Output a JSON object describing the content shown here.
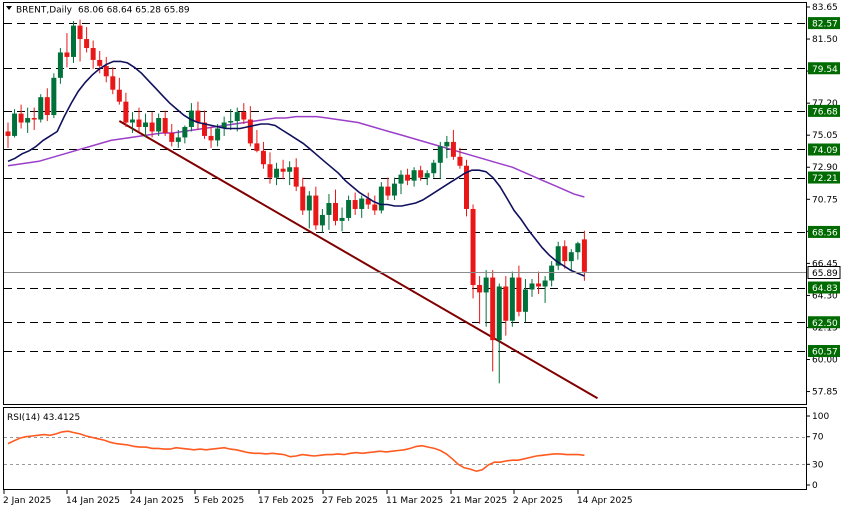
{
  "header": {
    "symbol_label": "BRENT,Daily",
    "ohlc_label": "68.06 68.64 65.28 65.89",
    "menu_icon": "triangle-down-icon"
  },
  "indicator": {
    "label": "RSI(14) 43.4125"
  },
  "colors": {
    "bull": "#00713b",
    "bear": "#e81818",
    "ma_fast": "#10105e",
    "ma_slow": "#9b3fc9",
    "trendline": "#800000",
    "level_tag": "#006b00",
    "rsi_line": "#ff5a1f",
    "grid_dash": "#000000"
  },
  "chart_data": [
    {
      "type": "candlestick",
      "title": "BRENT,Daily",
      "ylim": [
        57.15,
        83.65
      ],
      "y_ticks": [
        "83.65",
        "81.50",
        "79.35",
        "77.20",
        "75.05",
        "72.90",
        "70.75",
        "68.60",
        "66.45",
        "64.30",
        "62.15",
        "60.00",
        "57.85"
      ],
      "x_ticks": [
        "2 Jan 2025",
        "14 Jan 2025",
        "24 Jan 2025",
        "5 Feb 2025",
        "17 Feb 2025",
        "27 Feb 2025",
        "11 Mar 2025",
        "21 Mar 2025",
        "2 Apr 2025",
        "14 Apr 2025"
      ],
      "levels": [
        {
          "value": 82.57,
          "label": "82.57"
        },
        {
          "value": 79.54,
          "label": "79.54"
        },
        {
          "value": 76.68,
          "label": "76.68"
        },
        {
          "value": 74.09,
          "label": "74.09"
        },
        {
          "value": 72.21,
          "label": "72.21"
        },
        {
          "value": 68.56,
          "label": "68.56"
        },
        {
          "value": 64.83,
          "label": "64.83"
        },
        {
          "value": 62.5,
          "label": "62.50"
        },
        {
          "value": 60.57,
          "label": "60.57"
        }
      ],
      "current_price": {
        "value": 65.89,
        "label": "65.89"
      },
      "candles": [
        [
          75.3,
          75.9,
          74.2,
          75.0
        ],
        [
          75.0,
          76.8,
          74.9,
          76.5
        ],
        [
          76.5,
          77.1,
          75.5,
          75.9
        ],
        [
          75.9,
          76.9,
          75.2,
          76.2
        ],
        [
          76.2,
          76.9,
          75.4,
          76.1
        ],
        [
          76.1,
          77.8,
          75.9,
          77.6
        ],
        [
          77.6,
          78.2,
          76.0,
          76.4
        ],
        [
          76.4,
          79.2,
          76.2,
          78.9
        ],
        [
          78.9,
          80.9,
          78.5,
          80.6
        ],
        [
          80.6,
          81.9,
          79.6,
          80.3
        ],
        [
          80.3,
          82.7,
          79.9,
          82.4
        ],
        [
          82.4,
          82.8,
          80.0,
          81.5
        ],
        [
          81.5,
          82.3,
          80.6,
          80.9
        ],
        [
          80.9,
          81.4,
          79.5,
          80.1
        ],
        [
          80.1,
          80.7,
          79.2,
          79.7
        ],
        [
          79.7,
          80.3,
          78.6,
          79.0
        ],
        [
          79.0,
          79.6,
          77.8,
          78.1
        ],
        [
          78.1,
          78.9,
          77.1,
          77.3
        ],
        [
          77.3,
          77.9,
          75.6,
          75.9
        ],
        [
          75.9,
          76.6,
          75.2,
          76.1
        ],
        [
          76.1,
          76.9,
          75.3,
          75.6
        ],
        [
          75.6,
          76.5,
          74.9,
          75.9
        ],
        [
          75.9,
          76.6,
          74.9,
          75.3
        ],
        [
          75.3,
          76.5,
          75.0,
          76.2
        ],
        [
          76.2,
          76.7,
          75.0,
          75.2
        ],
        [
          75.2,
          75.8,
          74.3,
          74.6
        ],
        [
          74.6,
          75.4,
          74.2,
          74.9
        ],
        [
          74.9,
          75.7,
          74.5,
          75.6
        ],
        [
          75.6,
          77.2,
          75.3,
          76.7
        ],
        [
          76.7,
          77.3,
          75.4,
          75.9
        ],
        [
          75.9,
          76.7,
          74.8,
          75.0
        ],
        [
          75.0,
          75.6,
          74.2,
          74.7
        ],
        [
          74.7,
          75.8,
          74.3,
          75.5
        ],
        [
          75.5,
          76.3,
          75.0,
          75.9
        ],
        [
          75.9,
          76.8,
          75.4,
          76.0
        ],
        [
          76.0,
          76.9,
          75.3,
          76.6
        ],
        [
          76.6,
          77.2,
          75.8,
          76.1
        ],
        [
          76.1,
          77.0,
          74.3,
          74.5
        ],
        [
          74.5,
          75.4,
          73.9,
          74.0
        ],
        [
          74.0,
          74.6,
          72.8,
          73.1
        ],
        [
          73.1,
          73.9,
          71.8,
          72.2
        ],
        [
          72.2,
          73.2,
          71.7,
          72.8
        ],
        [
          72.8,
          73.4,
          72.1,
          72.6
        ],
        [
          72.6,
          73.3,
          71.7,
          72.9
        ],
        [
          72.9,
          73.5,
          71.3,
          71.6
        ],
        [
          71.6,
          72.2,
          69.7,
          70.0
        ],
        [
          70.0,
          71.3,
          68.8,
          71.0
        ],
        [
          71.0,
          71.6,
          68.7,
          69.0
        ],
        [
          69.0,
          70.1,
          68.5,
          69.7
        ],
        [
          69.7,
          71.1,
          68.7,
          70.5
        ],
        [
          70.5,
          71.4,
          69.0,
          69.3
        ],
        [
          69.3,
          70.2,
          68.6,
          69.5
        ],
        [
          69.5,
          71.0,
          69.3,
          70.7
        ],
        [
          70.7,
          71.2,
          69.7,
          70.1
        ],
        [
          70.1,
          71.0,
          69.5,
          70.8
        ],
        [
          70.8,
          71.2,
          70.1,
          70.4
        ],
        [
          70.4,
          71.0,
          69.7,
          70.0
        ],
        [
          70.0,
          71.9,
          69.8,
          71.6
        ],
        [
          71.6,
          72.2,
          70.7,
          71.0
        ],
        [
          71.0,
          72.2,
          70.7,
          71.8
        ],
        [
          71.8,
          72.7,
          71.1,
          72.4
        ],
        [
          72.4,
          72.8,
          71.7,
          72.0
        ],
        [
          72.0,
          72.9,
          71.6,
          72.7
        ],
        [
          72.7,
          73.0,
          72.0,
          72.2
        ],
        [
          72.2,
          72.7,
          71.7,
          72.5
        ],
        [
          72.5,
          73.4,
          72.2,
          73.2
        ],
        [
          73.2,
          74.6,
          72.1,
          74.3
        ],
        [
          74.3,
          75.0,
          73.5,
          74.6
        ],
        [
          74.6,
          75.4,
          73.4,
          73.6
        ],
        [
          73.6,
          74.2,
          72.8,
          73.0
        ],
        [
          73.0,
          73.4,
          69.6,
          70.1
        ],
        [
          70.1,
          70.4,
          64.1,
          65.0
        ],
        [
          65.0,
          65.6,
          62.4,
          64.5
        ],
        [
          64.5,
          66.0,
          62.2,
          65.5
        ],
        [
          65.5,
          66.0,
          59.2,
          61.3
        ],
        [
          61.3,
          65.1,
          58.4,
          64.9
        ],
        [
          64.9,
          65.6,
          61.6,
          62.6
        ],
        [
          62.6,
          65.9,
          62.2,
          65.5
        ],
        [
          65.5,
          66.3,
          62.9,
          63.2
        ],
        [
          63.2,
          65.4,
          62.5,
          64.7
        ],
        [
          64.7,
          65.4,
          64.2,
          65.1
        ],
        [
          65.1,
          65.9,
          64.4,
          64.9
        ],
        [
          64.9,
          65.6,
          63.8,
          65.3
        ],
        [
          65.3,
          66.6,
          64.9,
          66.3
        ],
        [
          66.3,
          67.9,
          66.0,
          67.6
        ],
        [
          67.6,
          68.0,
          66.1,
          66.6
        ],
        [
          66.6,
          67.4,
          65.9,
          67.2
        ],
        [
          67.2,
          67.9,
          66.7,
          67.8
        ],
        [
          68.06,
          68.64,
          65.28,
          65.89
        ]
      ],
      "ma_fast": [
        73.3,
        73.5,
        73.8,
        74.0,
        74.3,
        74.7,
        75.0,
        75.3,
        76.3,
        77.2,
        78.0,
        78.6,
        79.1,
        79.5,
        79.8,
        80.0,
        80.0,
        79.9,
        79.6,
        79.2,
        78.7,
        78.2,
        77.7,
        77.2,
        76.8,
        76.4,
        76.1,
        75.9,
        75.8,
        75.7,
        75.6,
        75.5,
        75.5,
        75.5,
        75.6,
        75.7,
        75.8,
        75.8,
        75.7,
        75.4,
        75.1,
        74.8,
        74.5,
        74.1,
        73.7,
        73.3,
        72.9,
        72.5,
        72.0,
        71.6,
        71.2,
        70.9,
        70.6,
        70.4,
        70.4,
        70.3,
        70.3,
        70.4,
        70.5,
        70.7,
        71.0,
        71.3,
        71.6,
        71.9,
        72.2,
        72.5,
        72.7,
        72.7,
        72.6,
        72.2,
        71.6,
        70.8,
        70.0,
        69.4,
        68.7,
        68.1,
        67.5,
        67.0,
        66.6,
        66.3,
        66.0,
        65.8,
        65.6
      ],
      "ma_slow": [
        73.0,
        73.1,
        73.2,
        73.3,
        73.5,
        73.7,
        73.9,
        74.1,
        74.3,
        74.5,
        74.7,
        74.8,
        74.9,
        75.0,
        75.1,
        75.2,
        75.2,
        75.3,
        75.4,
        75.5,
        75.6,
        75.7,
        75.8,
        75.9,
        76.0,
        76.1,
        76.2,
        76.2,
        76.3,
        76.3,
        76.3,
        76.2,
        76.1,
        76.0,
        75.9,
        75.7,
        75.5,
        75.3,
        75.1,
        74.9,
        74.7,
        74.5,
        74.3,
        74.1,
        73.9,
        73.7,
        73.5,
        73.3,
        73.1,
        72.9,
        72.6,
        72.3,
        72.0,
        71.7,
        71.4,
        71.1,
        70.9
      ],
      "trendline": {
        "from": [
          17,
          76.0
        ],
        "to": [
          90,
          57.4
        ]
      }
    },
    {
      "type": "line",
      "title": "RSI(14) 43.4125",
      "ylim": [
        0,
        100
      ],
      "y_ticks": [
        "100",
        "70",
        "30",
        "0"
      ],
      "levels": [
        70,
        30
      ],
      "series": [
        {
          "values": [
            60,
            64,
            68,
            70,
            71,
            72,
            73,
            72,
            74,
            77,
            78,
            76,
            74,
            71,
            69,
            67,
            65,
            62,
            60,
            59,
            58,
            56,
            55,
            55,
            53,
            53,
            52,
            52,
            54,
            53,
            52,
            51,
            52,
            51,
            52,
            53,
            54,
            52,
            51,
            49,
            47,
            46,
            46,
            45,
            46,
            45,
            44,
            41,
            42,
            44,
            43,
            42,
            43,
            44,
            44,
            45,
            44,
            46,
            47,
            46,
            47,
            48,
            49,
            48,
            49,
            50,
            51,
            53,
            56,
            57,
            55,
            53,
            50,
            45,
            38,
            30,
            25,
            23,
            20,
            22,
            29,
            33,
            33,
            35,
            36,
            36,
            38,
            40,
            42,
            43,
            44,
            45,
            45,
            44,
            44,
            44,
            43
          ]
        }
      ]
    }
  ]
}
